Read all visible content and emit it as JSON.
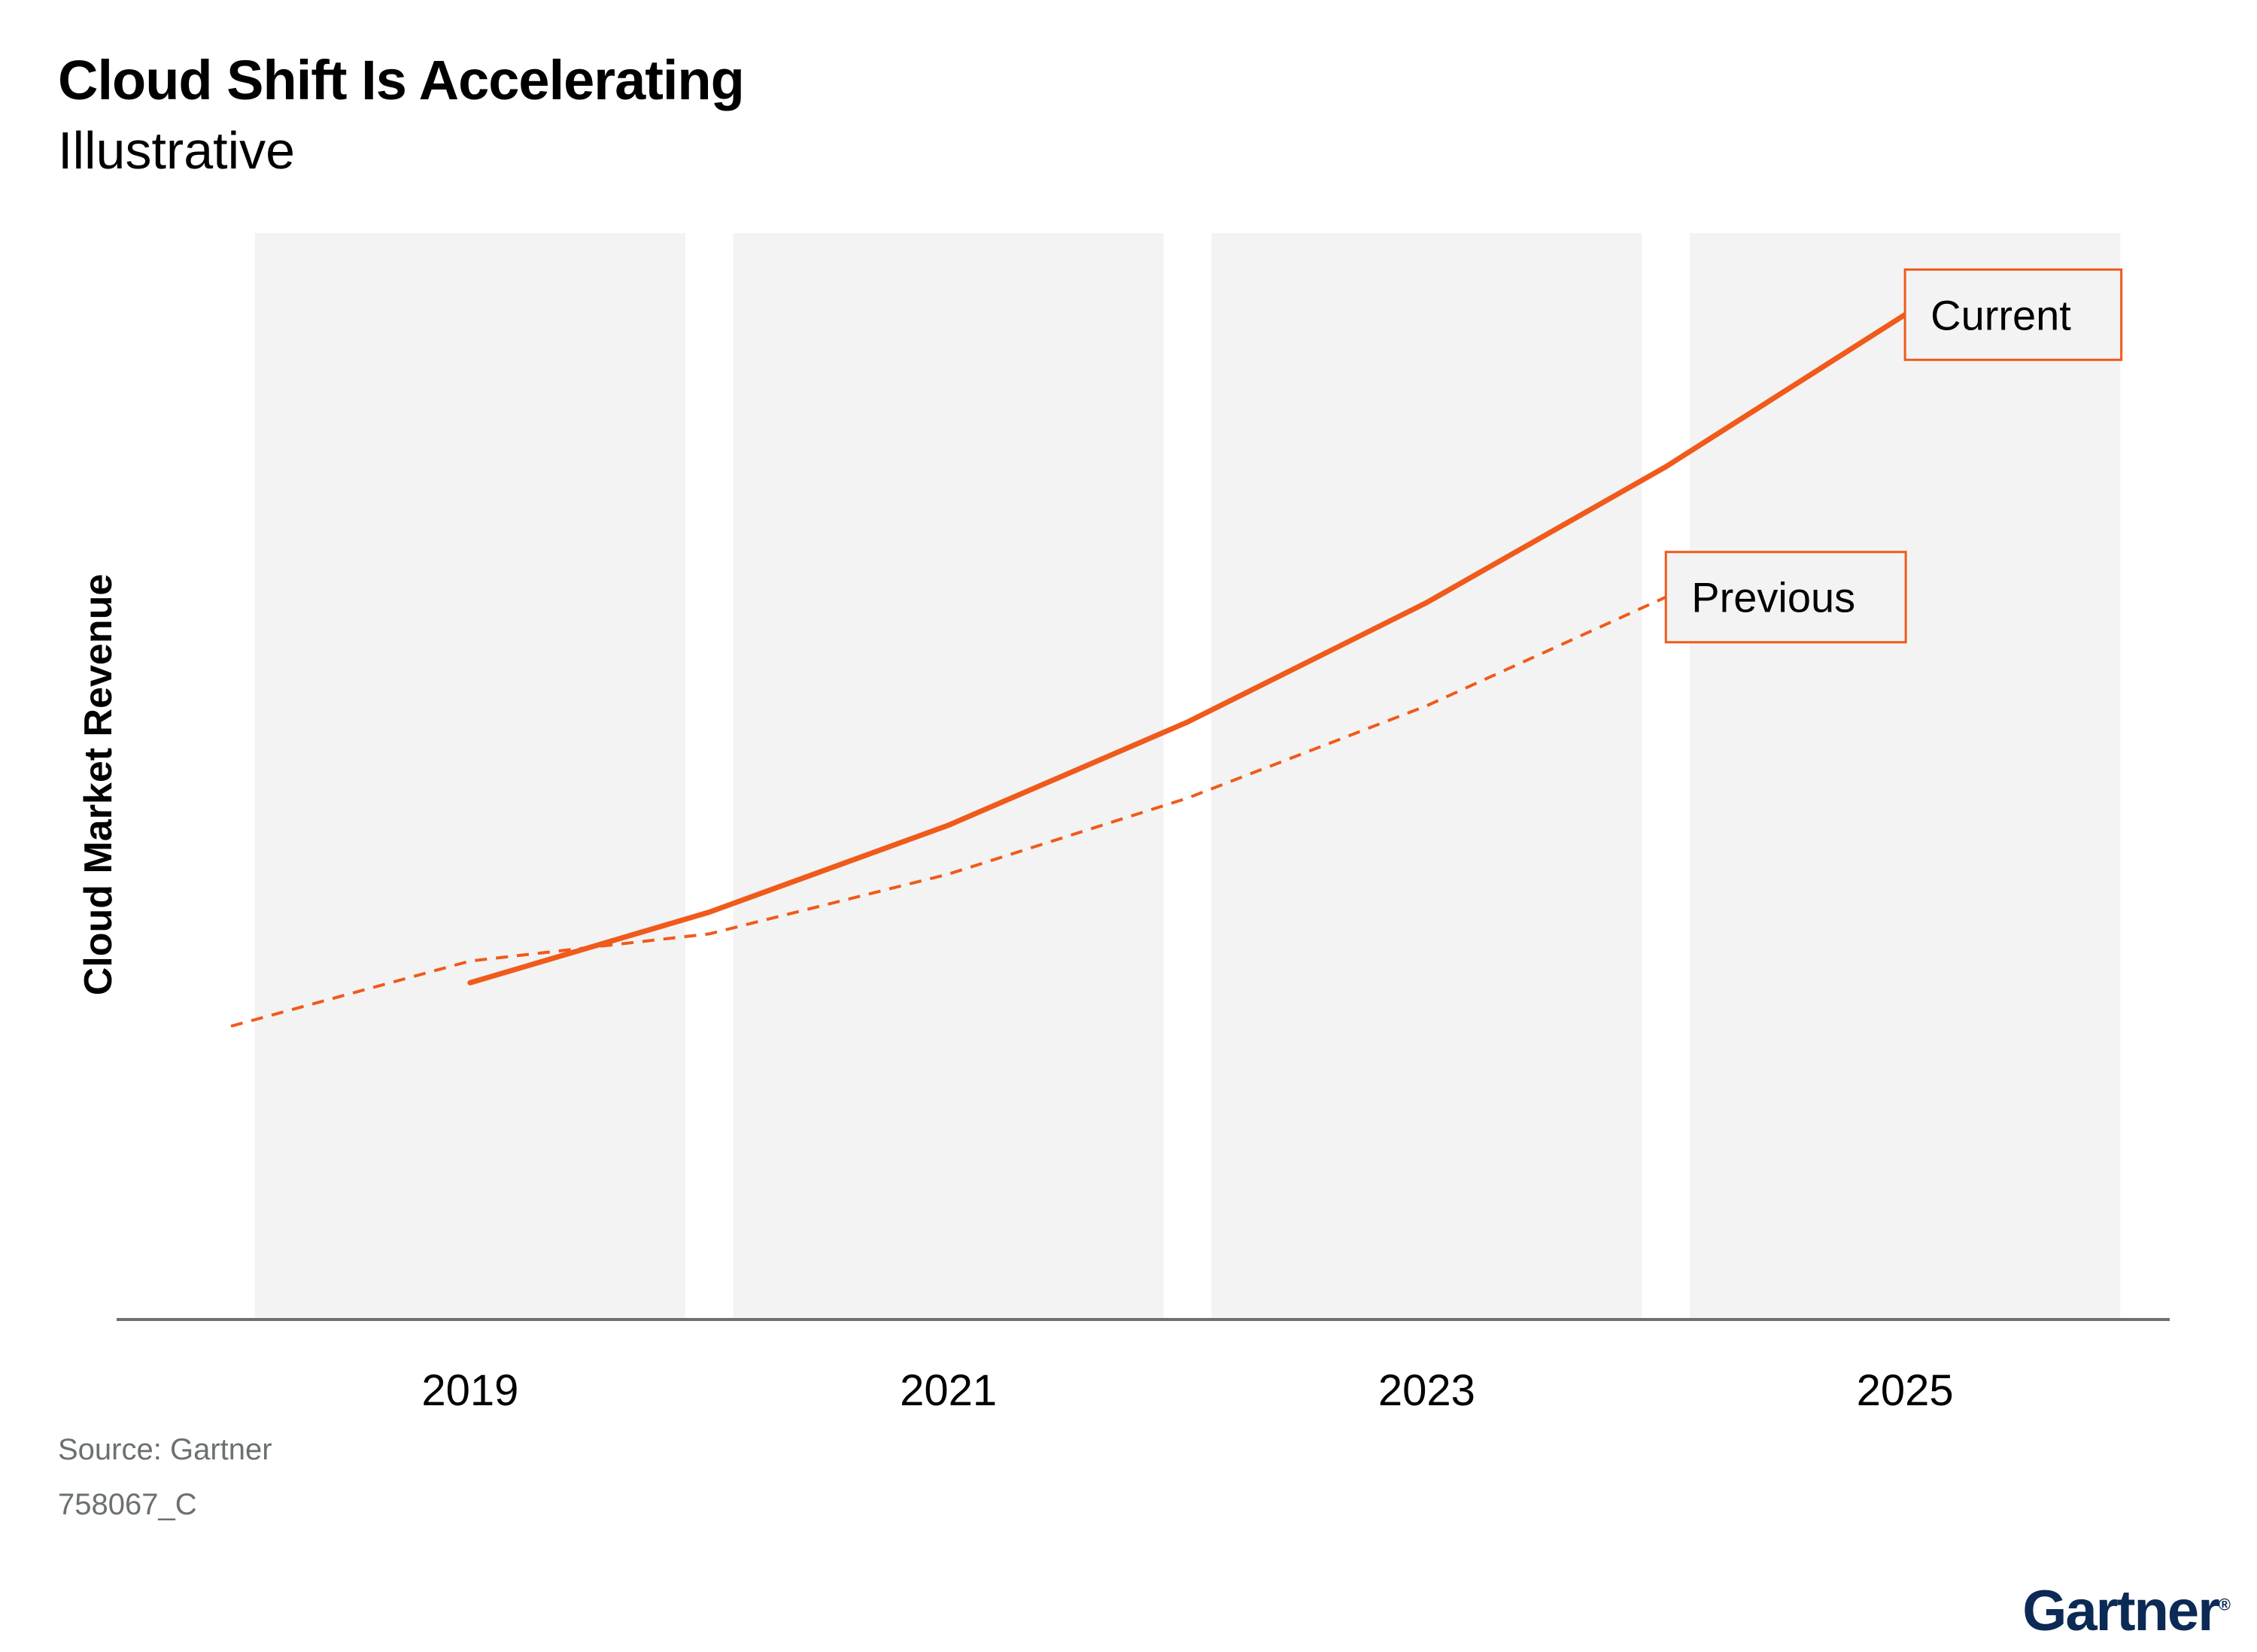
{
  "header": {
    "title": "Cloud Shift Is Accelerating",
    "subtitle": "Illustrative"
  },
  "footer": {
    "source": "Source: Gartner",
    "doc_id": "758067_C",
    "logo": "Gartner",
    "logo_mark": "®"
  },
  "chart_data": {
    "type": "line",
    "title": "Cloud Shift Is Accelerating",
    "subtitle": "Illustrative",
    "xlabel": "",
    "ylabel": "Cloud Market Revenue",
    "x_tick_labels": [
      "2019",
      "2021",
      "2023",
      "2025"
    ],
    "xlim": [
      2018,
      2026
    ],
    "ylim": [
      0,
      100
    ],
    "y_ticks_shown": false,
    "grid": false,
    "year_bands": [
      [
        2018.1,
        2019.9
      ],
      [
        2020.1,
        2021.9
      ],
      [
        2022.1,
        2023.9
      ],
      [
        2024.1,
        2025.9
      ]
    ],
    "series": [
      {
        "name": "Current",
        "style": "solid",
        "color": "#f05a1a",
        "x": [
          2019,
          2020,
          2021,
          2022,
          2023,
          2024,
          2025
        ],
        "y": [
          31,
          37.5,
          45.5,
          55,
          66,
          78.5,
          92.5
        ]
      },
      {
        "name": "Previous",
        "style": "dashed",
        "color": "#f05a1a",
        "x": [
          2018,
          2019,
          2020,
          2021,
          2022,
          2023,
          2024
        ],
        "y": [
          27,
          33,
          35.5,
          41,
          48,
          56.5,
          66.5
        ]
      }
    ],
    "colors": {
      "line": "#f05a1a",
      "band": "#f3f3f3",
      "axis": "#6b7070",
      "label_box": "#f05a1a"
    }
  }
}
